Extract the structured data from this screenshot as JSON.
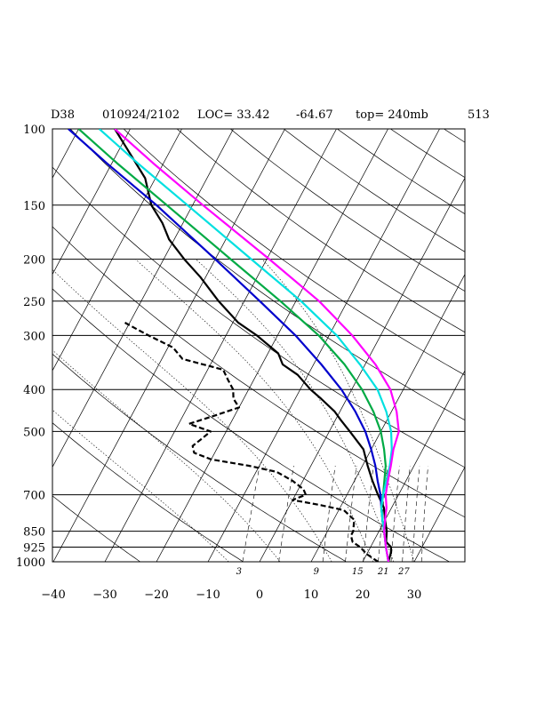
{
  "header": {
    "station": "D38",
    "datetime": "010924/2102",
    "loc": "LOC= 33.42",
    "lon": "-64.67",
    "top": "top= 240mb",
    "num": "513"
  },
  "chart_data": {
    "type": "line",
    "title": "",
    "xlabel": "",
    "ylabel": "",
    "pressure_levels": [
      100,
      150,
      200,
      250,
      300,
      400,
      500,
      700,
      850,
      925,
      1000
    ],
    "pressure_labels": [
      "100",
      "150",
      "200",
      "250",
      "300",
      "400",
      "500",
      "700",
      "850",
      "925",
      "1000"
    ],
    "temp_ticks": [
      -40,
      -30,
      -20,
      -10,
      0,
      10,
      20,
      30
    ],
    "temp_labels": [
      "−40",
      "−30",
      "−20",
      "−10",
      "0",
      "10",
      "20",
      "30"
    ],
    "xlim": [
      -40,
      40
    ],
    "ylim": [
      1000,
      100
    ],
    "log_pressure": true,
    "mixing_ratio_labels": [
      "3",
      "9",
      "15",
      "21",
      "27"
    ],
    "series": [
      {
        "color": "#000000",
        "style": "solid",
        "p": [
          1000,
          950,
          925,
          900,
          850,
          800,
          750,
          700,
          650,
          600,
          550,
          500,
          470,
          450,
          420,
          400,
          370,
          350,
          330,
          300,
          280,
          250,
          220,
          200,
          180,
          165,
          150,
          130,
          110,
          100
        ],
        "t": [
          25,
          24.5,
          24,
          22.5,
          21.5,
          20,
          18.5,
          16,
          13.5,
          11,
          8.5,
          4,
          1,
          -1,
          -5,
          -8,
          -12,
          -16,
          -18,
          -24,
          -29,
          -35,
          -41,
          -46,
          -51,
          -54,
          -58,
          -62,
          -69,
          -73
        ]
      },
      {
        "color": "#000000",
        "style": "dashed",
        "p": [
          1000,
          960,
          925,
          900,
          870,
          850,
          800,
          760,
          740,
          720,
          700,
          680,
          650,
          620,
          600,
          580,
          560,
          540,
          520,
          500,
          480,
          460,
          440,
          420,
          400,
          380,
          360,
          340,
          320,
          300,
          290,
          280
        ],
        "t": [
          23,
          20,
          18,
          16,
          15,
          15,
          14,
          11,
          6,
          0,
          2,
          1,
          -2,
          -6,
          -12,
          -20,
          -24,
          -25,
          -24,
          -23,
          -28,
          -24,
          -20,
          -22,
          -23,
          -25,
          -27,
          -36,
          -39,
          -45,
          -48,
          -51
        ]
      },
      {
        "color": "#0000cc",
        "style": "solid",
        "p": [
          1000,
          925,
          850,
          800,
          750,
          700,
          650,
          600,
          550,
          500,
          450,
          400,
          350,
          300,
          250,
          200,
          150,
          120,
          100
        ],
        "t": [
          25,
          23,
          21,
          19.5,
          18,
          16.5,
          14.5,
          12.5,
          10,
          7,
          3,
          -2,
          -8.5,
          -16.5,
          -27,
          -40,
          -57,
          -71,
          -82
        ]
      },
      {
        "color": "#00aa44",
        "style": "solid",
        "p": [
          1000,
          925,
          850,
          800,
          750,
          700,
          650,
          600,
          550,
          500,
          450,
          400,
          350,
          300,
          250,
          200,
          150,
          120,
          100
        ],
        "t": [
          25,
          23,
          21,
          19.5,
          18,
          17,
          15.8,
          14.5,
          12.5,
          10,
          6.5,
          2,
          -4,
          -12,
          -23,
          -37,
          -55,
          -69,
          -80
        ]
      },
      {
        "color": "#00e0e0",
        "style": "solid",
        "p": [
          1000,
          925,
          850,
          800,
          750,
          700,
          650,
          600,
          550,
          500,
          450,
          400,
          350,
          300,
          250,
          200,
          150,
          120,
          100
        ],
        "t": [
          25,
          23,
          21,
          19.5,
          18,
          17,
          16.2,
          15.3,
          14,
          12,
          9,
          5,
          -1,
          -8.5,
          -19,
          -33,
          -51,
          -65,
          -76
        ]
      },
      {
        "color": "#ff00ff",
        "style": "solid",
        "p": [
          1000,
          925,
          850,
          800,
          750,
          700,
          650,
          600,
          550,
          500,
          450,
          400,
          350,
          300,
          250,
          200,
          150,
          120,
          100
        ],
        "t": [
          25,
          23,
          21,
          20,
          19,
          17.5,
          16.5,
          15.5,
          14.3,
          13.5,
          11,
          7.5,
          2,
          -5.5,
          -15.5,
          -29.5,
          -48,
          -62,
          -73
        ]
      }
    ]
  }
}
